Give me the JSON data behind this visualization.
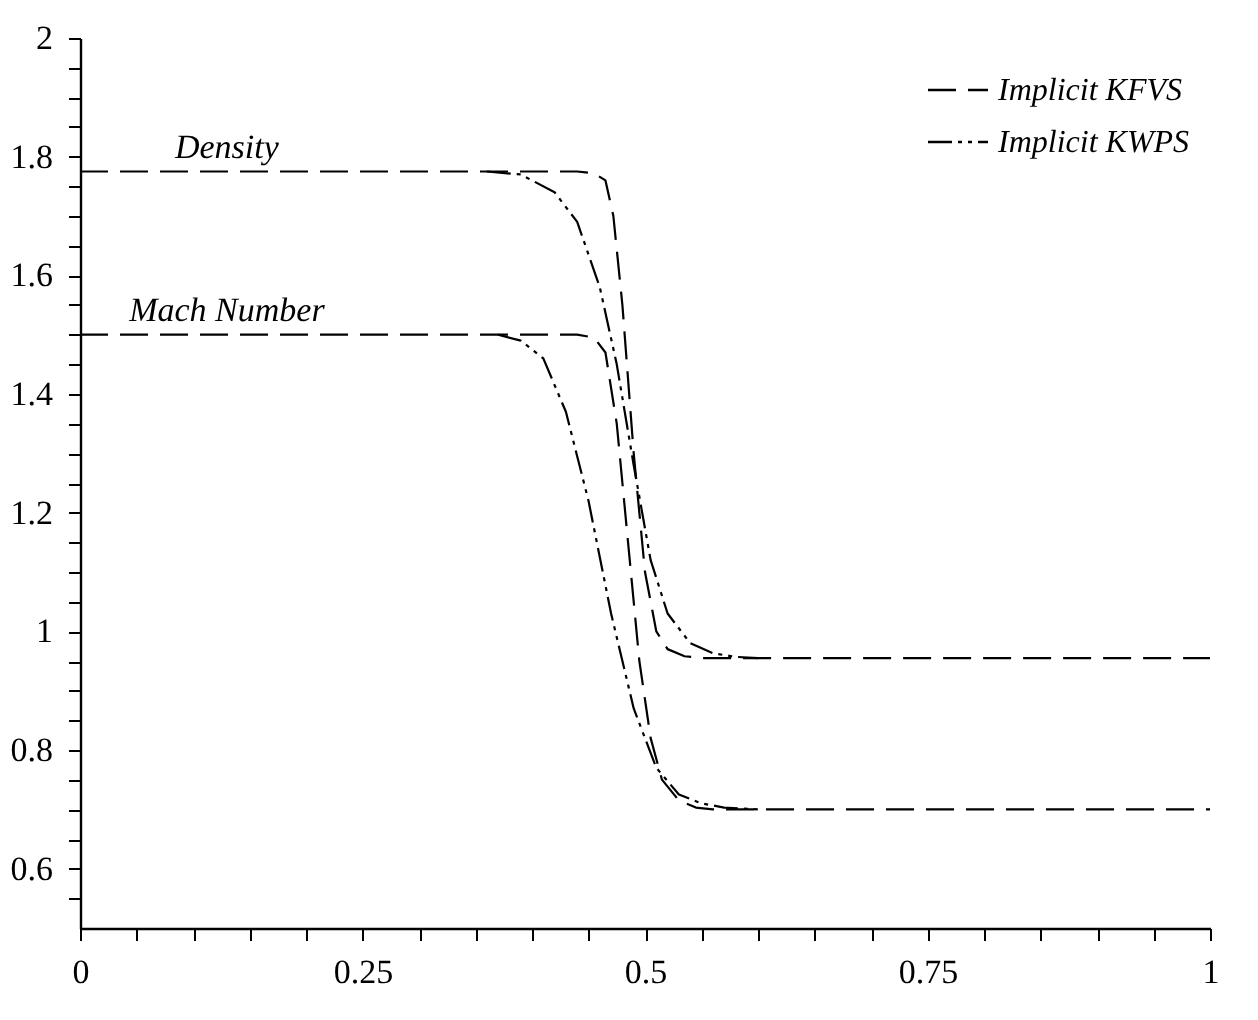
{
  "chart_data": {
    "type": "line",
    "xlim": [
      0,
      1
    ],
    "xticks": [
      0,
      {
        "value": 0.05,
        "label": null
      },
      {
        "value": 0.1,
        "label": null
      },
      {
        "value": 0.15,
        "label": null
      },
      {
        "value": 0.2,
        "label": null
      },
      0.25,
      {
        "value": 0.3,
        "label": null
      },
      {
        "value": 0.35,
        "label": null
      },
      {
        "value": 0.4,
        "label": null
      },
      {
        "value": 0.45,
        "label": null
      },
      0.5,
      {
        "value": 0.55,
        "label": null
      },
      {
        "value": 0.6,
        "label": null
      },
      {
        "value": 0.65,
        "label": null
      },
      {
        "value": 0.7,
        "label": null
      },
      0.75,
      {
        "value": 0.8,
        "label": null
      },
      {
        "value": 0.85,
        "label": null
      },
      {
        "value": 0.9,
        "label": null
      },
      {
        "value": 0.95,
        "label": null
      },
      1
    ],
    "ylim": [
      0.5,
      2
    ],
    "yticks": [
      {
        "value": 0.55,
        "label": null
      },
      0.6,
      {
        "value": 0.65,
        "label": null
      },
      {
        "value": 0.7,
        "label": null
      },
      {
        "value": 0.75,
        "label": null
      },
      0.8,
      {
        "value": 0.85,
        "label": null
      },
      {
        "value": 0.9,
        "label": null
      },
      {
        "value": 0.95,
        "label": null
      },
      1,
      {
        "value": 1.05,
        "label": null
      },
      {
        "value": 1.1,
        "label": null
      },
      {
        "value": 1.15,
        "label": null
      },
      1.2,
      {
        "value": 1.25,
        "label": null
      },
      {
        "value": 1.3,
        "label": null
      },
      {
        "value": 1.35,
        "label": null
      },
      1.4,
      {
        "value": 1.45,
        "label": null
      },
      {
        "value": 1.5,
        "label": null
      },
      {
        "value": 1.55,
        "label": null
      },
      1.6,
      {
        "value": 1.65,
        "label": null
      },
      {
        "value": 1.7,
        "label": null
      },
      {
        "value": 1.75,
        "label": null
      },
      1.8,
      {
        "value": 1.85,
        "label": null
      },
      {
        "value": 1.9,
        "label": null
      },
      {
        "value": 1.95,
        "label": null
      },
      2
    ],
    "grid": false,
    "legend": "top right",
    "marker": "none",
    "series": [
      {
        "name": "Implicit KFVS",
        "color": "#000000",
        "line_style": "dashed",
        "x": [
          0,
          0.44,
          0.455,
          0.465,
          0.472,
          0.48,
          0.49,
          0.5,
          0.51,
          0.52,
          0.535,
          0.55,
          0.6,
          1
        ],
        "values": [
          1.775,
          1.775,
          1.772,
          1.76,
          1.7,
          1.55,
          1.3,
          1.1,
          1.0,
          0.97,
          0.958,
          0.955,
          0.955,
          0.955
        ]
      },
      {
        "name": "Implicit KWPS",
        "color": "#000000",
        "line_style": "dotted",
        "x": [
          0.36,
          0.39,
          0.42,
          0.44,
          0.46,
          0.475,
          0.49,
          0.505,
          0.52,
          0.54,
          0.56,
          0.58,
          0.6
        ],
        "values": [
          1.775,
          1.77,
          1.74,
          1.69,
          1.58,
          1.45,
          1.28,
          1.12,
          1.03,
          0.98,
          0.963,
          0.957,
          0.955
        ]
      },
      {
        "color": "#000000",
        "line_style": "dashed",
        "x": [
          0,
          0.44,
          0.455,
          0.465,
          0.475,
          0.485,
          0.495,
          0.505,
          0.515,
          0.53,
          0.545,
          0.56,
          1
        ],
        "values": [
          1.5,
          1.5,
          1.495,
          1.47,
          1.35,
          1.15,
          0.95,
          0.82,
          0.75,
          0.715,
          0.703,
          0.7,
          0.7
        ]
      },
      {
        "color": "#000000",
        "line_style": "dotted",
        "x": [
          0.37,
          0.39,
          0.41,
          0.43,
          0.45,
          0.47,
          0.49,
          0.51,
          0.53,
          0.55,
          0.57,
          0.6
        ],
        "values": [
          1.5,
          1.49,
          1.46,
          1.37,
          1.22,
          1.03,
          0.87,
          0.77,
          0.725,
          0.71,
          0.703,
          0.7
        ]
      }
    ],
    "annotations": [
      {
        "text": "Density",
        "x": 0.13,
        "y": 1.775
      },
      {
        "text": "Mach Number",
        "x": 0.13,
        "y": 1.5
      }
    ]
  }
}
